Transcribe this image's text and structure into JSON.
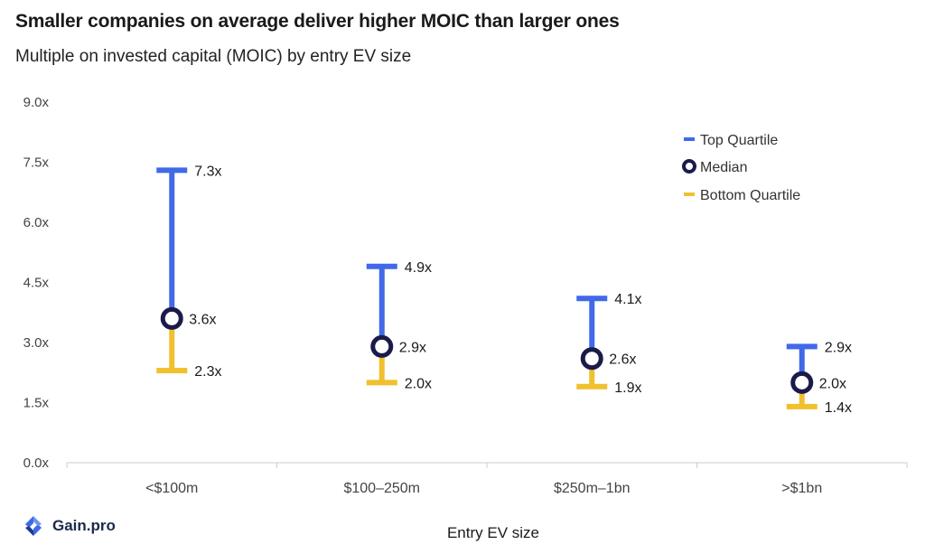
{
  "title": "Smaller companies on average deliver higher MOIC than larger ones",
  "subtitle": "Multiple on invested capital (MOIC) by entry EV size",
  "brand": {
    "name": "Gain.pro"
  },
  "colors": {
    "top": "#4169E8",
    "bottom": "#F0C02E",
    "median": "#1B1B4B",
    "grid": "#cccccc"
  },
  "chart_data": {
    "type": "range",
    "xlabel": "Entry EV size",
    "ylim": [
      0,
      9
    ],
    "yticks": [
      0,
      1.5,
      3.0,
      4.5,
      6.0,
      7.5,
      9.0
    ],
    "ytick_labels": [
      "0.0x",
      "1.5x",
      "3.0x",
      "4.5x",
      "6.0x",
      "7.5x",
      "9.0x"
    ],
    "categories": [
      "<$100m",
      "$100–250m",
      "$250m–1bn",
      ">$1bn"
    ],
    "series": [
      {
        "name": "Top Quartile",
        "values": [
          7.3,
          4.9,
          4.1,
          2.9
        ],
        "labels": [
          "7.3x",
          "4.9x",
          "4.1x",
          "2.9x"
        ]
      },
      {
        "name": "Median",
        "values": [
          3.6,
          2.9,
          2.6,
          2.0
        ],
        "labels": [
          "3.6x",
          "2.9x",
          "2.6x",
          "2.0x"
        ]
      },
      {
        "name": "Bottom Quartile",
        "values": [
          2.3,
          2.0,
          1.9,
          1.4
        ],
        "labels": [
          "2.3x",
          "2.0x",
          "1.9x",
          "1.4x"
        ]
      }
    ],
    "legend": {
      "position": "top-right",
      "median_label": " Median"
    }
  }
}
